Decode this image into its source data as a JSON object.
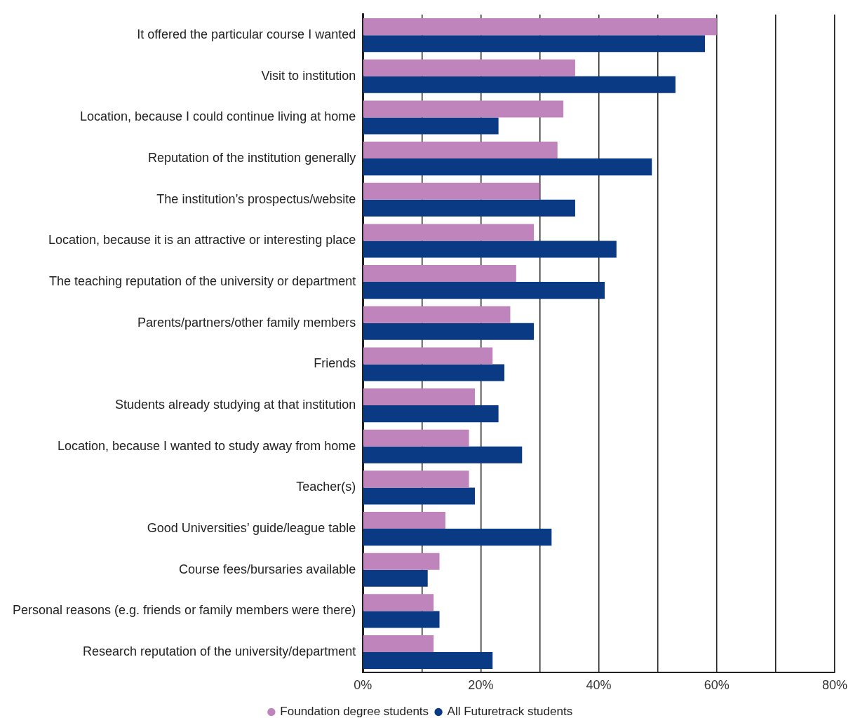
{
  "chart_data": {
    "type": "bar",
    "orientation": "horizontal",
    "categories": [
      "It offered the particular course I wanted",
      "Visit to institution",
      "Location, because I could continue living at home",
      "Reputation of the institution generally",
      "The institution’s prospectus/website",
      "Location, because it is an attractive or interesting place",
      "The teaching reputation of the university or department",
      "Parents/partners/other family members",
      "Friends",
      "Students already studying at that institution",
      "Location, because I wanted to study away from home",
      "Teacher(s)",
      "Good Universities’ guide/league table",
      "Course fees/bursaries available",
      "Personal reasons (e.g. friends or family members were there)",
      "Research reputation of the university/department"
    ],
    "series": [
      {
        "name": "Foundation degree students",
        "color": "#c084bc",
        "values": [
          60,
          36,
          34,
          33,
          30,
          29,
          26,
          25,
          22,
          19,
          18,
          18,
          14,
          13,
          12,
          12
        ]
      },
      {
        "name": "All Futuretrack students",
        "color": "#0a3a84",
        "values": [
          58,
          53,
          23,
          49,
          36,
          43,
          41,
          29,
          24,
          23,
          27,
          19,
          32,
          11,
          13,
          22
        ]
      }
    ],
    "xlim": [
      0,
      80
    ],
    "xticks": [
      {
        "value": 0,
        "label": "0%"
      },
      {
        "value": 10,
        "label": null
      },
      {
        "value": 20,
        "label": "20%"
      },
      {
        "value": 30,
        "label": null
      },
      {
        "value": 40,
        "label": "40%"
      },
      {
        "value": 50,
        "label": null
      },
      {
        "value": 60,
        "label": "60%"
      },
      {
        "value": 70,
        "label": null
      },
      {
        "value": 80,
        "label": "80%"
      }
    ],
    "grid": "x",
    "legend": "bottom",
    "marker": "circle"
  }
}
